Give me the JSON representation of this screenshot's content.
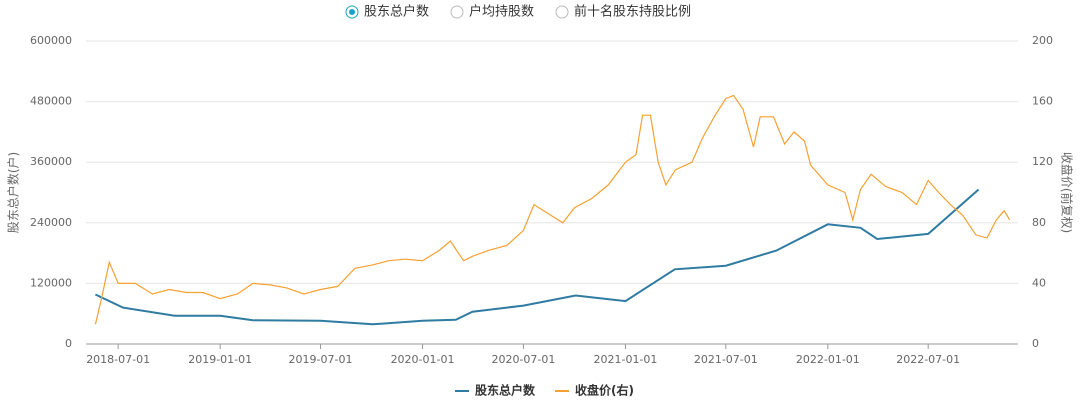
{
  "chart_data": {
    "type": "line",
    "options": [
      "股东总户数",
      "户均持股数",
      "前十名股东持股比例"
    ],
    "selected_option": 0,
    "y_label": "股东总户数(户)",
    "y2_label": "收盘价(前复权)",
    "xlim": [
      "2018-05-04",
      "2022-12-10"
    ],
    "xticks": [
      "2018-07-01",
      "2019-01-01",
      "2019-07-01",
      "2020-01-01",
      "2020-07-01",
      "2021-01-01",
      "2021-07-01",
      "2022-01-01",
      "2022-07-01"
    ],
    "ylim": [
      0,
      600000
    ],
    "yticks": [
      0,
      120000,
      240000,
      360000,
      480000,
      600000
    ],
    "y2lim": [
      0,
      200
    ],
    "y2ticks": [
      0,
      40,
      80,
      120,
      160,
      200
    ],
    "grid": true,
    "legend": "bottom",
    "series": [
      {
        "name": "股东总户数",
        "color": "#2f7ba1",
        "axis": "y",
        "x": [
          "2018-05-21",
          "2018-07-10",
          "2018-10-11",
          "2019-01-01",
          "2019-03-01",
          "2019-07-01",
          "2019-10-03",
          "2020-01-01",
          "2020-03-01",
          "2020-03-31",
          "2020-07-01",
          "2020-10-03",
          "2021-01-01",
          "2021-03-31",
          "2021-07-01",
          "2021-09-30",
          "2022-01-01",
          "2022-03-01",
          "2022-03-31",
          "2022-07-01",
          "2022-09-30"
        ],
        "values": [
          98000,
          72000,
          56000,
          56000,
          47000,
          46000,
          39000,
          46000,
          48000,
          64000,
          76000,
          96000,
          85000,
          148000,
          155000,
          185000,
          237000,
          230000,
          208000,
          218000,
          306000
        ]
      },
      {
        "name": "收盘价(右)",
        "color": "#f5a133",
        "axis": "y2",
        "x": [
          "2018-05-21",
          "2018-06-01",
          "2018-06-15",
          "2018-07-01",
          "2018-08-01",
          "2018-09-01",
          "2018-10-01",
          "2018-11-01",
          "2018-12-01",
          "2019-01-01",
          "2019-02-01",
          "2019-03-01",
          "2019-04-01",
          "2019-05-01",
          "2019-06-01",
          "2019-07-01",
          "2019-08-01",
          "2019-09-01",
          "2019-10-01",
          "2019-11-01",
          "2019-12-01",
          "2020-01-01",
          "2020-02-01",
          "2020-02-20",
          "2020-03-15",
          "2020-04-01",
          "2020-05-01",
          "2020-06-01",
          "2020-07-01",
          "2020-07-20",
          "2020-08-15",
          "2020-09-10",
          "2020-10-01",
          "2020-11-01",
          "2020-12-01",
          "2021-01-01",
          "2021-01-20",
          "2021-02-01",
          "2021-02-15",
          "2021-03-01",
          "2021-03-15",
          "2021-04-01",
          "2021-05-01",
          "2021-05-20",
          "2021-06-10",
          "2021-07-01",
          "2021-07-15",
          "2021-08-01",
          "2021-08-20",
          "2021-09-01",
          "2021-09-25",
          "2021-10-15",
          "2021-11-01",
          "2021-11-20",
          "2021-12-01",
          "2022-01-01",
          "2022-02-01",
          "2022-02-15",
          "2022-03-01",
          "2022-03-20",
          "2022-04-15",
          "2022-05-15",
          "2022-06-10",
          "2022-07-01",
          "2022-07-20",
          "2022-08-10",
          "2022-09-01",
          "2022-09-25",
          "2022-10-15",
          "2022-11-01",
          "2022-11-15",
          "2022-11-25"
        ],
        "values": [
          13,
          30,
          54,
          40,
          40,
          33,
          36,
          34,
          34,
          30,
          33,
          40,
          39,
          37,
          33,
          36,
          38,
          50,
          52,
          55,
          56,
          55,
          62,
          68,
          55,
          58,
          62,
          65,
          75,
          92,
          86,
          80,
          90,
          96,
          105,
          120,
          125,
          151,
          151,
          120,
          105,
          115,
          120,
          136,
          150,
          162,
          164,
          155,
          130,
          150,
          150,
          132,
          140,
          134,
          118,
          105,
          100,
          82,
          102,
          112,
          104,
          100,
          92,
          108,
          100,
          92,
          85,
          72,
          70,
          82,
          88,
          82
        ]
      }
    ]
  }
}
